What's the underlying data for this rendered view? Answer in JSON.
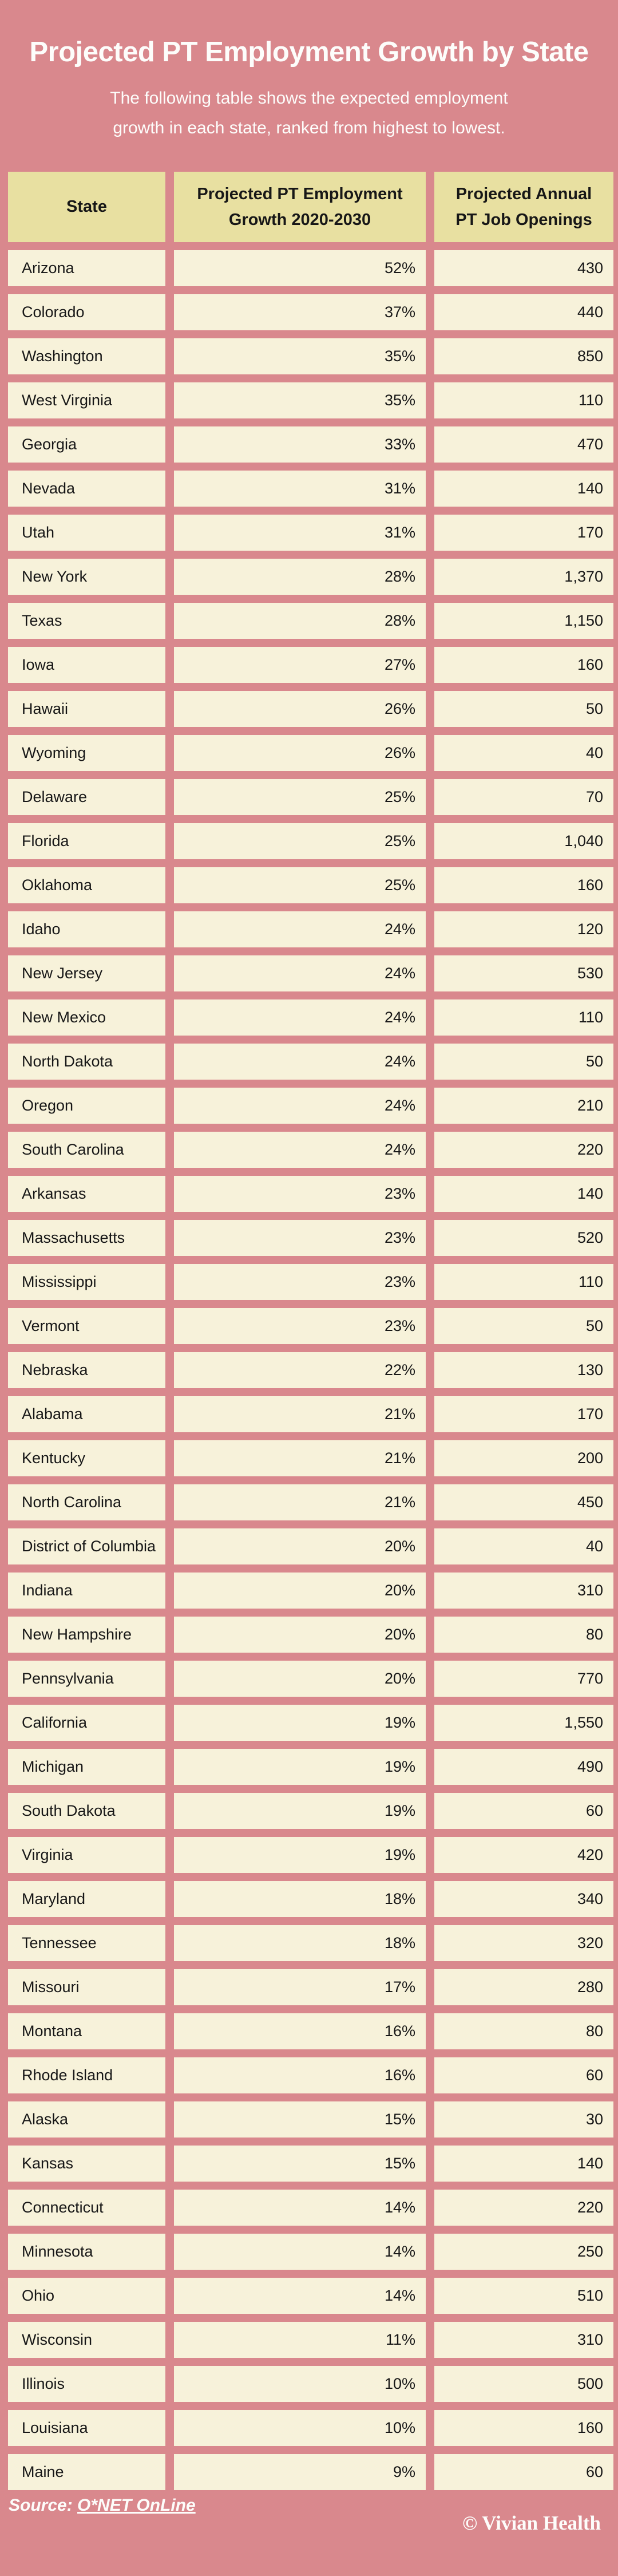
{
  "page": {
    "title": "Projected PT Employment Growth by State",
    "subtitle": "The following table shows the expected employment\ngrowth in each state, ranked from highest to lowest.",
    "source_label": "Source: ",
    "source_link": "O*NET OnLine",
    "copyright": "© Vivian Health"
  },
  "colors": {
    "background": "#d9888d",
    "header_cell": "#e8e0a1",
    "data_cell": "#f7f2da",
    "text_dark": "#171717",
    "text_light": "#fdfdfb"
  },
  "table": {
    "headers": {
      "state": "State",
      "growth": "Projected PT Employment\nGrowth 2020-2030",
      "openings": "Projected Annual\nPT Job Openings"
    }
  },
  "chart_data": {
    "type": "table",
    "title": "Projected PT Employment Growth by State",
    "columns": [
      "State",
      "Projected PT Employment Growth 2020-2030 (%)",
      "Projected Annual PT Job Openings"
    ],
    "rows": [
      [
        "Arizona",
        52,
        430
      ],
      [
        "Colorado",
        37,
        440
      ],
      [
        "Washington",
        35,
        850
      ],
      [
        "West Virginia",
        35,
        110
      ],
      [
        "Georgia",
        33,
        470
      ],
      [
        "Nevada",
        31,
        140
      ],
      [
        "Utah",
        31,
        170
      ],
      [
        "New York",
        28,
        1370
      ],
      [
        "Texas",
        28,
        1150
      ],
      [
        "Iowa",
        27,
        160
      ],
      [
        "Hawaii",
        26,
        50
      ],
      [
        "Wyoming",
        26,
        40
      ],
      [
        "Delaware",
        25,
        70
      ],
      [
        "Florida",
        25,
        1040
      ],
      [
        "Oklahoma",
        25,
        160
      ],
      [
        "Idaho",
        24,
        120
      ],
      [
        "New Jersey",
        24,
        530
      ],
      [
        "New Mexico",
        24,
        110
      ],
      [
        "North Dakota",
        24,
        50
      ],
      [
        "Oregon",
        24,
        210
      ],
      [
        "South Carolina",
        24,
        220
      ],
      [
        "Arkansas",
        23,
        140
      ],
      [
        "Massachusetts",
        23,
        520
      ],
      [
        "Mississippi",
        23,
        110
      ],
      [
        "Vermont",
        23,
        50
      ],
      [
        "Nebraska",
        22,
        130
      ],
      [
        "Alabama",
        21,
        170
      ],
      [
        "Kentucky",
        21,
        200
      ],
      [
        "North Carolina",
        21,
        450
      ],
      [
        "District of Columbia",
        20,
        40
      ],
      [
        "Indiana",
        20,
        310
      ],
      [
        "New Hampshire",
        20,
        80
      ],
      [
        "Pennsylvania",
        20,
        770
      ],
      [
        "California",
        19,
        1550
      ],
      [
        "Michigan",
        19,
        490
      ],
      [
        "South Dakota",
        19,
        60
      ],
      [
        "Virginia",
        19,
        420
      ],
      [
        "Maryland",
        18,
        340
      ],
      [
        "Tennessee",
        18,
        320
      ],
      [
        "Missouri",
        17,
        280
      ],
      [
        "Montana",
        16,
        80
      ],
      [
        "Rhode Island",
        16,
        60
      ],
      [
        "Alaska",
        15,
        30
      ],
      [
        "Kansas",
        15,
        140
      ],
      [
        "Connecticut",
        14,
        220
      ],
      [
        "Minnesota",
        14,
        250
      ],
      [
        "Ohio",
        14,
        510
      ],
      [
        "Wisconsin",
        11,
        310
      ],
      [
        "Illinois",
        10,
        500
      ],
      [
        "Louisiana",
        10,
        160
      ],
      [
        "Maine",
        9,
        60
      ]
    ]
  }
}
